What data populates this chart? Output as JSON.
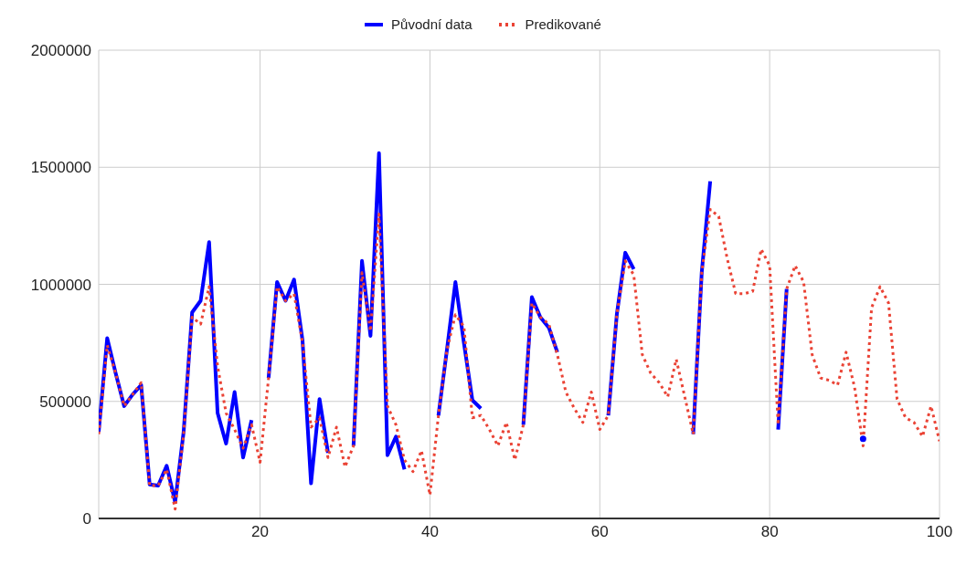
{
  "chart_data": {
    "type": "line",
    "x": [
      1,
      2,
      3,
      4,
      5,
      6,
      7,
      8,
      9,
      10,
      11,
      12,
      13,
      14,
      15,
      16,
      17,
      18,
      19,
      20,
      21,
      22,
      23,
      24,
      25,
      26,
      27,
      28,
      29,
      30,
      31,
      32,
      33,
      34,
      35,
      36,
      37,
      38,
      39,
      40,
      41,
      42,
      43,
      44,
      45,
      46,
      47,
      48,
      49,
      50,
      51,
      52,
      53,
      54,
      55,
      56,
      57,
      58,
      59,
      60,
      61,
      62,
      63,
      64,
      65,
      66,
      67,
      68,
      69,
      70,
      71,
      72,
      73,
      74,
      75,
      76,
      77,
      78,
      79,
      80,
      81,
      82,
      83,
      84,
      85,
      86,
      87,
      88,
      89,
      90,
      91,
      92,
      93,
      94,
      95,
      96,
      97,
      98,
      99,
      100
    ],
    "series": [
      {
        "name": "Původní data",
        "color": "#0000ff",
        "line_style": "solid",
        "values": [
          370000,
          770000,
          620000,
          480000,
          530000,
          570000,
          145000,
          140000,
          225000,
          70000,
          370000,
          880000,
          930000,
          1180000,
          450000,
          320000,
          540000,
          260000,
          420000,
          null,
          600000,
          1010000,
          930000,
          1020000,
          760000,
          150000,
          510000,
          280000,
          null,
          null,
          310000,
          1100000,
          780000,
          1560000,
          270000,
          350000,
          210000,
          null,
          null,
          null,
          440000,
          720000,
          1010000,
          750000,
          505000,
          470000,
          null,
          null,
          null,
          null,
          400000,
          945000,
          860000,
          815000,
          710000,
          null,
          null,
          null,
          null,
          null,
          440000,
          870000,
          1135000,
          1065000,
          null,
          null,
          null,
          null,
          null,
          null,
          360000,
          1050000,
          1440000,
          null,
          null,
          null,
          null,
          null,
          null,
          null,
          380000,
          980000,
          null,
          null,
          null,
          null,
          null,
          null,
          null,
          null,
          340000,
          null,
          null,
          null,
          null,
          null,
          null,
          null,
          null,
          null
        ]
      },
      {
        "name": "Predikované",
        "color": "#ea4335",
        "line_style": "dotted",
        "values": [
          360000,
          740000,
          620000,
          480000,
          530000,
          580000,
          140000,
          140000,
          210000,
          40000,
          360000,
          860000,
          830000,
          990000,
          650000,
          450000,
          380000,
          300000,
          400000,
          240000,
          600000,
          990000,
          930000,
          960000,
          750000,
          390000,
          430000,
          260000,
          390000,
          220000,
          310000,
          1050000,
          800000,
          1300000,
          480000,
          400000,
          250000,
          200000,
          290000,
          100000,
          440000,
          720000,
          870000,
          820000,
          430000,
          440000,
          380000,
          310000,
          410000,
          250000,
          400000,
          920000,
          860000,
          830000,
          700000,
          540000,
          470000,
          410000,
          540000,
          380000,
          440000,
          870000,
          1100000,
          1040000,
          700000,
          620000,
          580000,
          520000,
          680000,
          520000,
          360000,
          1050000,
          1320000,
          1290000,
          1110000,
          960000,
          960000,
          970000,
          1150000,
          1080000,
          400000,
          980000,
          1080000,
          1010000,
          700000,
          600000,
          590000,
          570000,
          710000,
          560000,
          310000,
          900000,
          990000,
          920000,
          510000,
          430000,
          410000,
          350000,
          480000,
          330000
        ]
      }
    ],
    "xlim": [
      1,
      100
    ],
    "xticks": [
      20,
      40,
      60,
      80,
      100
    ],
    "ylim": [
      0,
      2000000
    ],
    "yticks": [
      0,
      500000,
      1000000,
      1500000,
      2000000
    ],
    "grid": true,
    "legend": "top"
  }
}
